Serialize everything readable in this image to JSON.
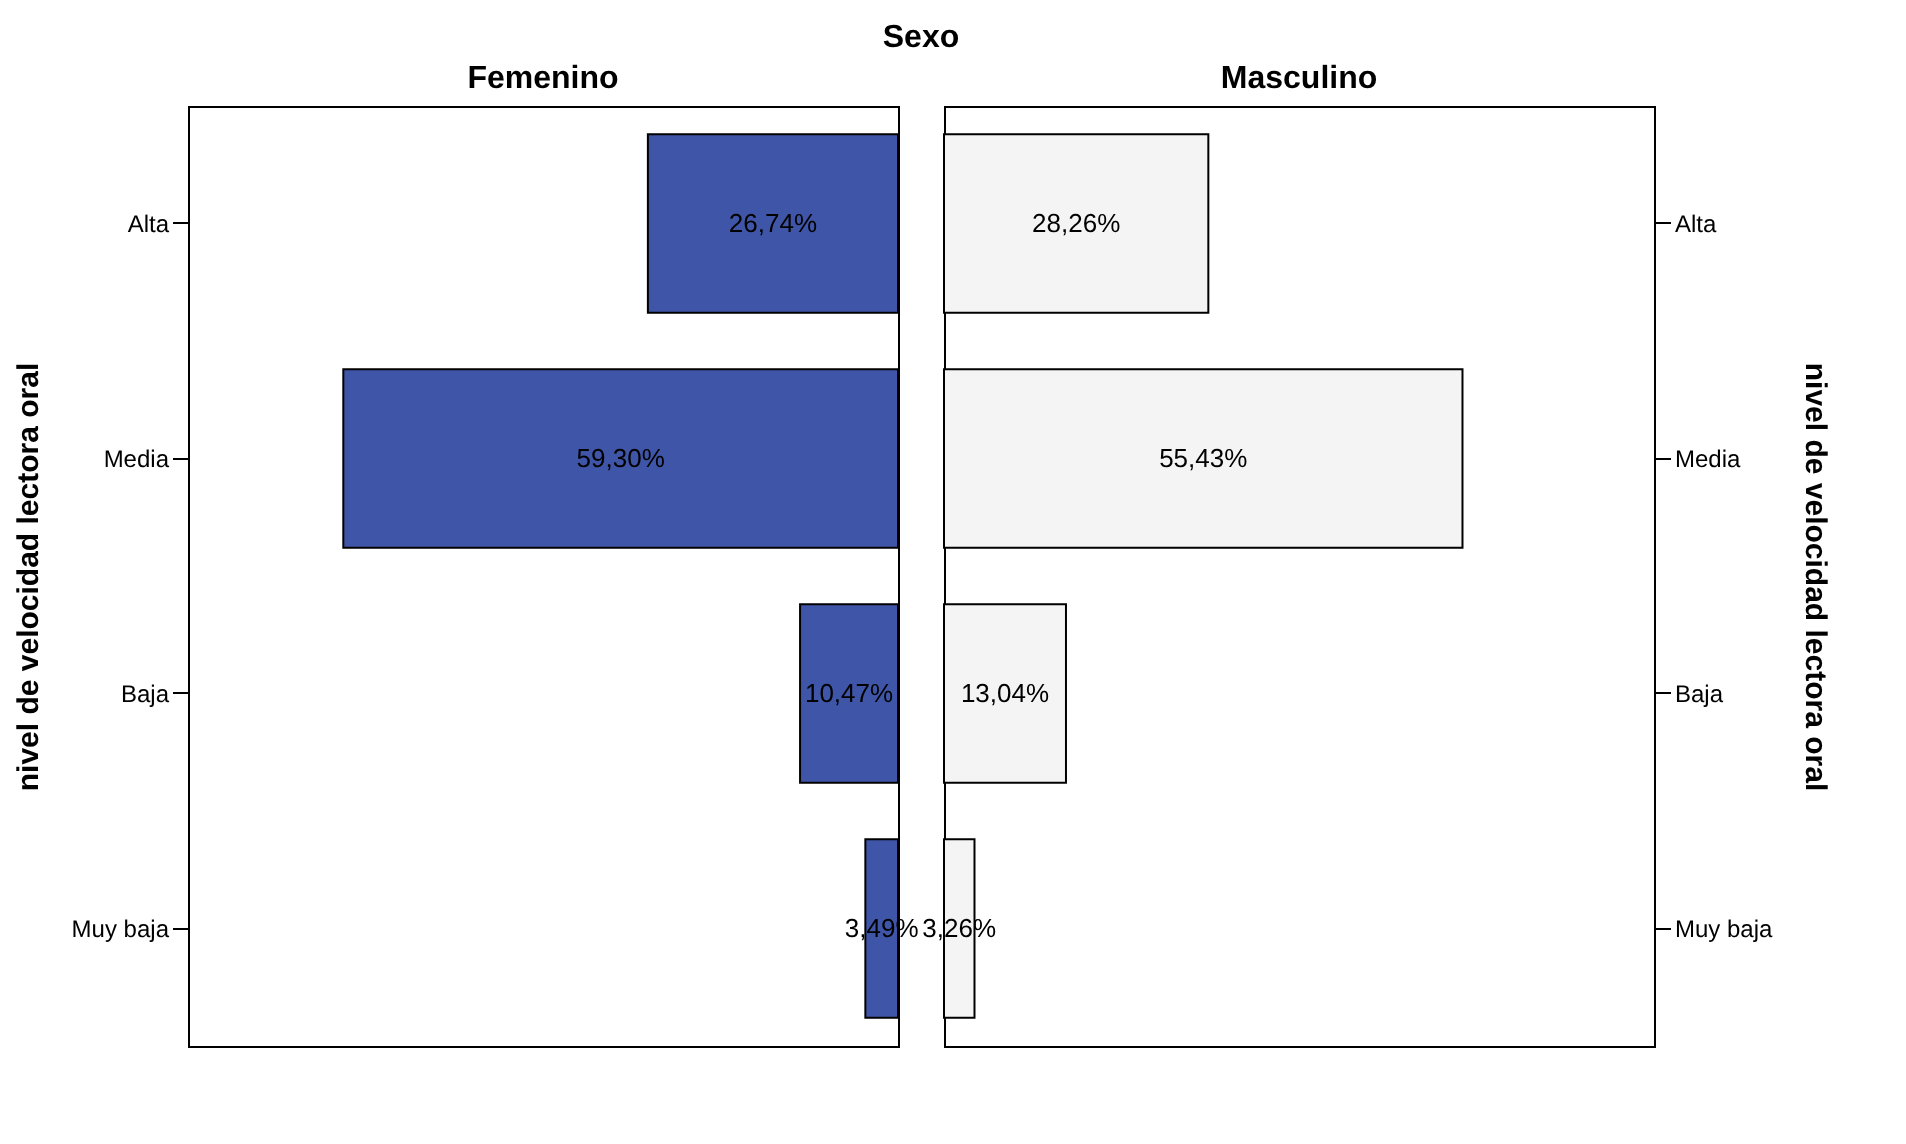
{
  "chart_data": [
    {
      "type": "bar",
      "orientation": "horizontal",
      "title": "Femenino",
      "ylabel": "nivel de velocidad lectora oral",
      "annotations": [
        "Sexo"
      ],
      "categories": [
        "Alta",
        "Media",
        "Baja",
        "Muy baja"
      ],
      "values": [
        26.74,
        59.3,
        10.47,
        3.49
      ],
      "color": "#3f56a8",
      "data_labels": true,
      "value_labels": [
        "26,74%",
        "59,30%",
        "10,47%",
        "3,49%"
      ]
    },
    {
      "type": "bar",
      "orientation": "horizontal",
      "title": "Masculino",
      "ylabel": "nivel de velocidad lectora oral",
      "categories": [
        "Alta",
        "Media",
        "Baja",
        "Muy baja"
      ],
      "values": [
        28.26,
        55.43,
        13.04,
        3.26
      ],
      "color": "#f4f4f4",
      "data_labels": true,
      "value_labels": [
        "28,26%",
        "55,43%",
        "13,04%",
        "3,26%"
      ]
    }
  ]
}
